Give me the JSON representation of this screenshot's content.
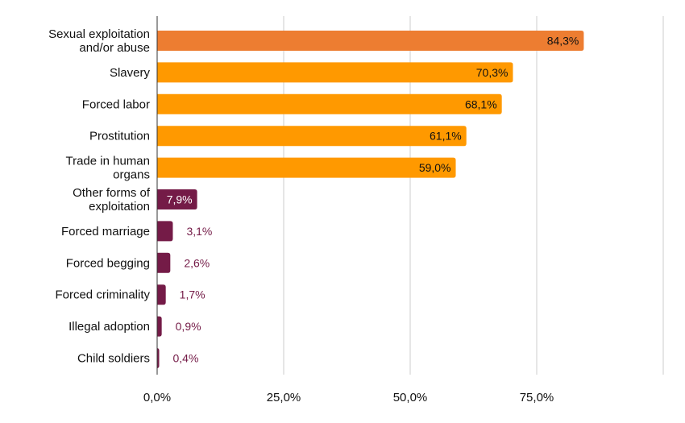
{
  "chart_data": {
    "type": "bar",
    "orientation": "horizontal",
    "categories": [
      [
        "Sexual exploitation",
        "and/or abuse"
      ],
      [
        "Slavery"
      ],
      [
        "Forced labor"
      ],
      [
        "Prostitution"
      ],
      [
        "Trade in human",
        "organs"
      ],
      [
        "Other forms of",
        "exploitation"
      ],
      [
        "Forced marriage"
      ],
      [
        "Forced begging"
      ],
      [
        "Forced criminality"
      ],
      [
        "Illegal adoption"
      ],
      [
        "Child soldiers"
      ]
    ],
    "values": [
      84.3,
      70.3,
      68.1,
      61.1,
      59.0,
      7.9,
      3.1,
      2.6,
      1.7,
      0.9,
      0.4
    ],
    "value_labels": [
      "84,3%",
      "70,3%",
      "68,1%",
      "61,1%",
      "59,0%",
      "7,9%",
      "3,1%",
      "2,6%",
      "1,7%",
      "0,9%",
      "0,4%"
    ],
    "colors": [
      "#ed7d31",
      "#ff9900",
      "#ff9900",
      "#ff9900",
      "#ff9900",
      "#741b47",
      "#741b47",
      "#741b47",
      "#741b47",
      "#741b47",
      "#741b47"
    ],
    "x_ticks": [
      0,
      25,
      50,
      75,
      100
    ],
    "x_tick_labels": [
      "0,0%",
      "25,0%",
      "50,0%",
      "75,0%",
      ""
    ],
    "xlim": [
      0,
      100
    ],
    "grid": true,
    "title": "",
    "xlabel": "",
    "ylabel": ""
  }
}
